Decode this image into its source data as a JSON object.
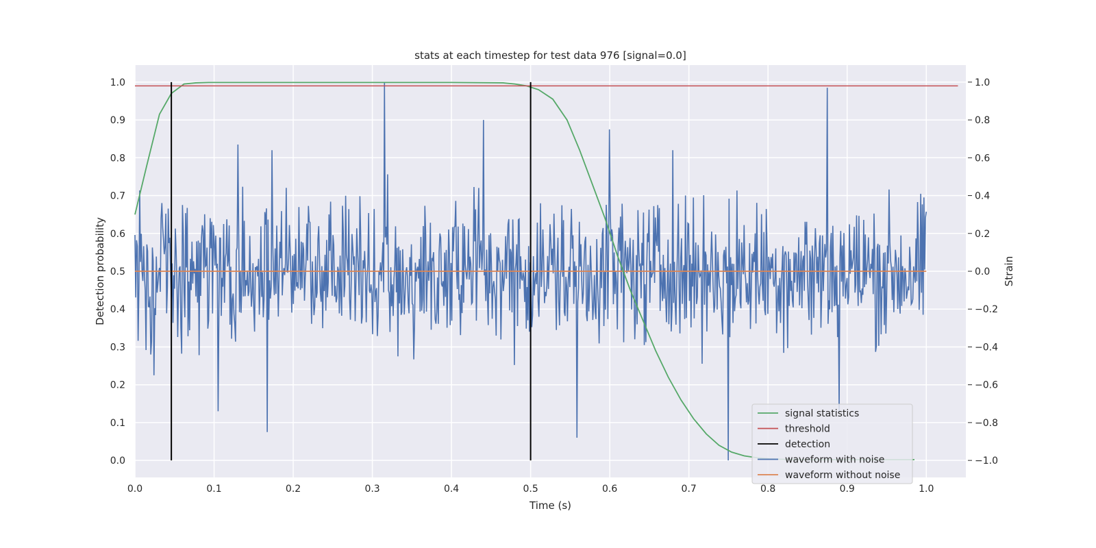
{
  "chart_data": {
    "type": "line",
    "title": "stats at each timestep for test data 976 [signal=0.0]",
    "xlabel": "Time (s)",
    "ylabel_left": "Detection probability",
    "ylabel_right": "Strain",
    "xlim": [
      0.0,
      1.05
    ],
    "ylim_left": [
      -0.045,
      1.045
    ],
    "ylim_right": [
      -1.09,
      1.09
    ],
    "x_ticks": [
      "0.0",
      "0.1",
      "0.2",
      "0.3",
      "0.4",
      "0.5",
      "0.6",
      "0.7",
      "0.8",
      "0.9",
      "1.0"
    ],
    "y_ticks_left": [
      "0.0",
      "0.1",
      "0.2",
      "0.3",
      "0.4",
      "0.5",
      "0.6",
      "0.7",
      "0.8",
      "0.9",
      "1.0"
    ],
    "y_ticks_right": [
      "−1.0",
      "−0.8",
      "−0.6",
      "−0.4",
      "−0.2",
      "0.0",
      "0.2",
      "0.4",
      "0.6",
      "0.8",
      "1.0"
    ],
    "grid": true,
    "legend_placement": "lower-right",
    "series": [
      {
        "name": "signal statistics",
        "axis": "left",
        "color": "#55a868",
        "x": [
          0.0,
          0.015,
          0.031,
          0.046,
          0.062,
          0.077,
          0.093,
          0.2,
          0.3,
          0.4,
          0.465,
          0.48,
          0.495,
          0.51,
          0.528,
          0.546,
          0.562,
          0.578,
          0.594,
          0.61,
          0.626,
          0.642,
          0.658,
          0.674,
          0.69,
          0.706,
          0.722,
          0.738,
          0.754,
          0.77,
          0.786,
          0.802,
          0.818,
          0.85,
          0.9,
          0.95,
          0.985
        ],
        "y": [
          0.65,
          0.78,
          0.915,
          0.97,
          0.995,
          0.998,
          0.999,
          0.999,
          0.999,
          0.999,
          0.998,
          0.995,
          0.99,
          0.98,
          0.955,
          0.9,
          0.82,
          0.73,
          0.64,
          0.54,
          0.45,
          0.37,
          0.29,
          0.22,
          0.16,
          0.11,
          0.07,
          0.04,
          0.022,
          0.012,
          0.007,
          0.004,
          0.003,
          0.002,
          0.002,
          0.002,
          0.002
        ]
      },
      {
        "name": "threshold",
        "axis": "left",
        "color": "#c44e52",
        "x": [
          0.0,
          1.04
        ],
        "y": [
          0.99,
          0.99
        ]
      },
      {
        "name": "detection",
        "axis": "left",
        "color": "#000000",
        "segments": [
          {
            "x": 0.046,
            "y0": 0.0,
            "y1": 1.0
          },
          {
            "x": 0.5,
            "y0": 0.0,
            "y1": 1.0
          }
        ]
      },
      {
        "name": "waveform with noise",
        "axis": "right",
        "color": "#4c72b0",
        "x_range": [
          0.0,
          1.0
        ],
        "n_points": 1000,
        "peaks": [
          {
            "x": 0.315,
            "y": 1.0
          },
          {
            "x": 0.875,
            "y": 0.97
          },
          {
            "x": 0.44,
            "y": 0.8
          },
          {
            "x": 0.13,
            "y": 0.67
          },
          {
            "x": 0.173,
            "y": 0.64
          },
          {
            "x": 0.6,
            "y": 0.75
          },
          {
            "x": 0.68,
            "y": 0.64
          },
          {
            "x": 0.75,
            "y": -1.0
          },
          {
            "x": 0.167,
            "y": -0.85
          },
          {
            "x": 0.559,
            "y": -0.88
          },
          {
            "x": 0.89,
            "y": -0.74
          },
          {
            "x": 0.105,
            "y": -0.74
          },
          {
            "x": 0.024,
            "y": -0.55
          }
        ],
        "y_range_typical": [
          -0.45,
          0.45
        ]
      },
      {
        "name": "waveform without noise",
        "axis": "right",
        "color": "#dd8452",
        "x": [
          0.0,
          1.0
        ],
        "y": [
          0.0,
          0.0
        ]
      }
    ]
  }
}
